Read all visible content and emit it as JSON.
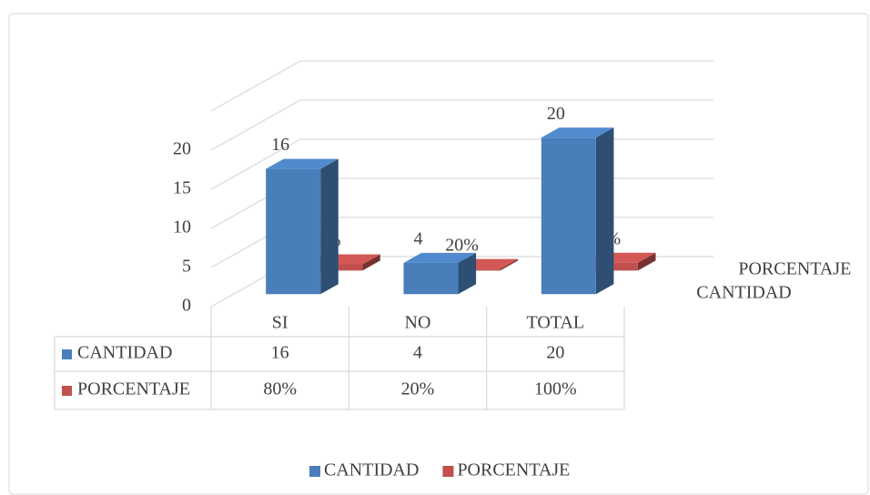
{
  "chart_data": {
    "type": "bar",
    "categories": [
      "SI",
      "NO",
      "TOTAL"
    ],
    "series": [
      {
        "name": "CANTIDAD",
        "color": "#4a7ebb",
        "values": [
          16,
          4,
          20
        ]
      },
      {
        "name": "PORCENTAJE",
        "color": "#c0504d",
        "values": [
          0.8,
          0.2,
          1
        ],
        "value_labels": [
          "80%",
          "20%",
          "100%"
        ]
      }
    ],
    "ylim": [
      0,
      25
    ],
    "yticks": [
      0,
      5,
      10,
      15,
      20
    ],
    "grid": true,
    "legend": "bottom",
    "data_table": true
  }
}
